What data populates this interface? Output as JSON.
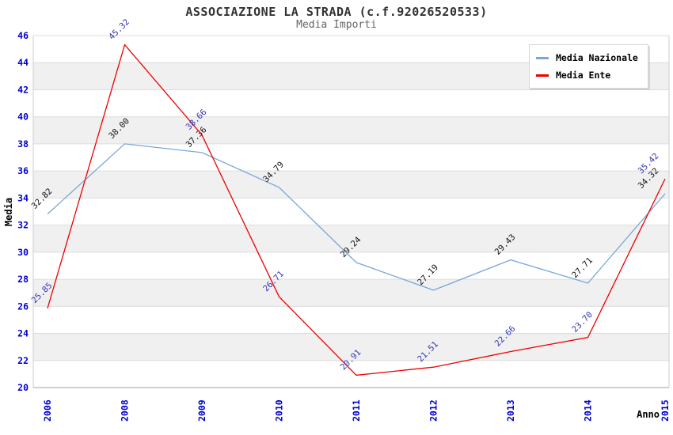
{
  "chart_data": {
    "type": "line",
    "title": "ASSOCIAZIONE LA STRADA (c.f.92026520533)",
    "subtitle": "Media Importi",
    "xlabel": "Anno",
    "ylabel": "Media",
    "categories": [
      "2006",
      "2008",
      "2009",
      "2010",
      "2011",
      "2012",
      "2013",
      "2014",
      "2015"
    ],
    "ylim": [
      20,
      46
    ],
    "ytick_step": 2,
    "grid": "horizontal-bands",
    "legend_position": "top-right",
    "series": [
      {
        "name": "Media Nazionale",
        "color": "#7aa7da",
        "label_color": "#111111",
        "values": [
          32.82,
          38.0,
          37.36,
          34.79,
          29.24,
          27.19,
          29.43,
          27.71,
          34.32
        ]
      },
      {
        "name": "Media Ente",
        "color": "#ee0000",
        "label_color": "#3333b3",
        "values": [
          25.85,
          45.32,
          38.66,
          26.71,
          20.91,
          21.51,
          22.66,
          23.7,
          35.42
        ]
      }
    ],
    "colors": {
      "tick_label": "#0000cc",
      "band": "#f0f0f0",
      "gridline": "#dcdcdc",
      "axis_line": "#a0a0a0",
      "plot_border": "#cccccc",
      "axis_title": "#000000"
    }
  }
}
